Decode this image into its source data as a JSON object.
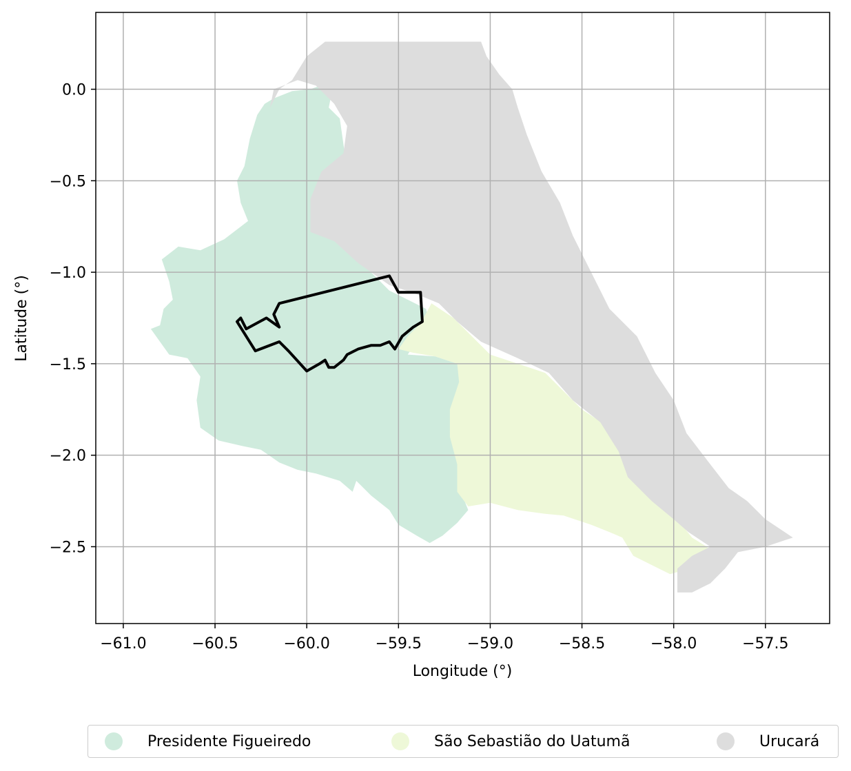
{
  "chart_data": {
    "type": "map",
    "xlabel": "Longitude (°)",
    "ylabel": "Latitude (°)",
    "xlim": [
      -61.15,
      -57.15
    ],
    "ylim": [
      -2.92,
      0.42
    ],
    "xticks": [
      -61.0,
      -60.5,
      -60.0,
      -59.5,
      -59.0,
      -58.5,
      -58.0,
      -57.5
    ],
    "xtick_labels": [
      "−61.0",
      "−60.5",
      "−60.0",
      "−59.5",
      "−59.0",
      "−58.5",
      "−58.0",
      "−57.5"
    ],
    "yticks": [
      0.0,
      -0.5,
      -1.0,
      -1.5,
      -2.0,
      -2.5
    ],
    "ytick_labels": [
      "0.0",
      "−0.5",
      "−1.0",
      "−1.5",
      "−2.0",
      "−2.5"
    ],
    "grid": true,
    "legend_placement": "bottom-center",
    "regions": [
      {
        "name": "Presidente Figueiredo",
        "color": "#cfebdd",
        "outline": [
          [
            -60.85,
            -1.31
          ],
          [
            -60.8,
            -1.29
          ],
          [
            -60.78,
            -1.2
          ],
          [
            -60.73,
            -1.15
          ],
          [
            -60.75,
            -1.05
          ],
          [
            -60.79,
            -0.93
          ],
          [
            -60.7,
            -0.86
          ],
          [
            -60.58,
            -0.88
          ],
          [
            -60.45,
            -0.82
          ],
          [
            -60.32,
            -0.72
          ],
          [
            -60.36,
            -0.62
          ],
          [
            -60.38,
            -0.5
          ],
          [
            -60.34,
            -0.42
          ],
          [
            -60.31,
            -0.27
          ],
          [
            -60.27,
            -0.14
          ],
          [
            -60.23,
            -0.08
          ],
          [
            -60.18,
            -0.05
          ],
          [
            -60.08,
            -0.01
          ],
          [
            -59.98,
            0.0
          ],
          [
            -59.9,
            0.03
          ],
          [
            -59.86,
            0.0
          ],
          [
            -59.88,
            -0.1
          ],
          [
            -59.82,
            -0.16
          ],
          [
            -59.8,
            -0.3
          ],
          [
            -59.78,
            -0.45
          ],
          [
            -59.88,
            -0.55
          ],
          [
            -59.88,
            -0.75
          ],
          [
            -59.78,
            -0.88
          ],
          [
            -59.65,
            -1.0
          ],
          [
            -59.55,
            -1.1
          ],
          [
            -59.45,
            -1.15
          ],
          [
            -59.35,
            -1.2
          ],
          [
            -59.33,
            -1.28
          ],
          [
            -59.4,
            -1.38
          ],
          [
            -59.45,
            -1.45
          ],
          [
            -59.3,
            -1.46
          ],
          [
            -59.18,
            -1.5
          ],
          [
            -59.15,
            -1.6
          ],
          [
            -59.2,
            -1.72
          ],
          [
            -59.22,
            -1.87
          ],
          [
            -59.18,
            -2.0
          ],
          [
            -59.18,
            -2.15
          ],
          [
            -59.12,
            -2.3
          ],
          [
            -59.18,
            -2.37
          ],
          [
            -59.26,
            -2.44
          ],
          [
            -59.33,
            -2.48
          ],
          [
            -59.4,
            -2.44
          ],
          [
            -59.5,
            -2.38
          ],
          [
            -59.55,
            -2.3
          ],
          [
            -59.65,
            -2.22
          ],
          [
            -59.73,
            -2.14
          ],
          [
            -59.75,
            -2.2
          ],
          [
            -59.82,
            -2.14
          ],
          [
            -59.95,
            -2.1
          ],
          [
            -60.05,
            -2.08
          ],
          [
            -60.15,
            -2.04
          ],
          [
            -60.25,
            -1.97
          ],
          [
            -60.35,
            -1.95
          ],
          [
            -60.48,
            -1.92
          ],
          [
            -60.58,
            -1.85
          ],
          [
            -60.6,
            -1.7
          ],
          [
            -60.58,
            -1.57
          ],
          [
            -60.65,
            -1.47
          ],
          [
            -60.75,
            -1.45
          ],
          [
            -60.8,
            -1.38
          ]
        ]
      },
      {
        "name": "São Sebastião do Uatumã",
        "color": "#eef8d8",
        "outline": [
          [
            -59.5,
            -1.42
          ],
          [
            -59.45,
            -1.35
          ],
          [
            -59.38,
            -1.28
          ],
          [
            -59.32,
            -1.17
          ],
          [
            -59.2,
            -1.25
          ],
          [
            -59.1,
            -1.35
          ],
          [
            -59.0,
            -1.45
          ],
          [
            -58.85,
            -1.5
          ],
          [
            -58.7,
            -1.55
          ],
          [
            -58.6,
            -1.65
          ],
          [
            -58.5,
            -1.75
          ],
          [
            -58.35,
            -1.85
          ],
          [
            -58.28,
            -2.0
          ],
          [
            -58.22,
            -2.15
          ],
          [
            -58.08,
            -2.25
          ],
          [
            -57.98,
            -2.35
          ],
          [
            -57.9,
            -2.45
          ],
          [
            -57.82,
            -2.5
          ],
          [
            -57.78,
            -2.55
          ],
          [
            -57.85,
            -2.6
          ],
          [
            -57.95,
            -2.63
          ],
          [
            -58.02,
            -2.65
          ],
          [
            -58.12,
            -2.6
          ],
          [
            -58.22,
            -2.55
          ],
          [
            -58.28,
            -2.45
          ],
          [
            -58.35,
            -2.42
          ],
          [
            -58.45,
            -2.38
          ],
          [
            -58.6,
            -2.33
          ],
          [
            -58.7,
            -2.32
          ],
          [
            -58.85,
            -2.3
          ],
          [
            -59.0,
            -2.26
          ],
          [
            -59.12,
            -2.28
          ],
          [
            -59.18,
            -2.2
          ],
          [
            -59.18,
            -2.05
          ],
          [
            -59.22,
            -1.9
          ],
          [
            -59.22,
            -1.75
          ],
          [
            -59.17,
            -1.6
          ],
          [
            -59.18,
            -1.5
          ],
          [
            -59.3,
            -1.46
          ],
          [
            -59.42,
            -1.44
          ]
        ]
      },
      {
        "name": "Urucará",
        "color": "#dddddd",
        "outline": [
          [
            -59.9,
            0.26
          ],
          [
            -59.05,
            0.26
          ],
          [
            -59.02,
            0.18
          ],
          [
            -58.95,
            0.08
          ],
          [
            -58.88,
            0.0
          ],
          [
            -58.85,
            -0.1
          ],
          [
            -58.8,
            -0.25
          ],
          [
            -58.72,
            -0.45
          ],
          [
            -58.62,
            -0.62
          ],
          [
            -58.55,
            -0.8
          ],
          [
            -58.45,
            -1.0
          ],
          [
            -58.35,
            -1.2
          ],
          [
            -58.2,
            -1.35
          ],
          [
            -58.1,
            -1.55
          ],
          [
            -58.0,
            -1.7
          ],
          [
            -57.93,
            -1.88
          ],
          [
            -57.8,
            -2.05
          ],
          [
            -57.7,
            -2.18
          ],
          [
            -57.6,
            -2.25
          ],
          [
            -57.5,
            -2.35
          ],
          [
            -57.35,
            -2.45
          ],
          [
            -57.5,
            -2.5
          ],
          [
            -57.65,
            -2.53
          ],
          [
            -57.72,
            -2.62
          ],
          [
            -57.8,
            -2.7
          ],
          [
            -57.9,
            -2.75
          ],
          [
            -57.98,
            -2.75
          ],
          [
            -57.98,
            -2.62
          ],
          [
            -57.9,
            -2.55
          ],
          [
            -57.8,
            -2.5
          ],
          [
            -57.92,
            -2.42
          ],
          [
            -58.0,
            -2.35
          ],
          [
            -58.12,
            -2.25
          ],
          [
            -58.25,
            -2.12
          ],
          [
            -58.3,
            -1.98
          ],
          [
            -58.4,
            -1.82
          ],
          [
            -58.55,
            -1.7
          ],
          [
            -58.68,
            -1.55
          ],
          [
            -58.85,
            -1.47
          ],
          [
            -59.05,
            -1.38
          ],
          [
            -59.18,
            -1.27
          ],
          [
            -59.28,
            -1.17
          ],
          [
            -59.4,
            -1.12
          ],
          [
            -59.55,
            -1.07
          ],
          [
            -59.72,
            -0.95
          ],
          [
            -59.85,
            -0.83
          ],
          [
            -59.98,
            -0.78
          ],
          [
            -59.98,
            -0.6
          ],
          [
            -59.92,
            -0.45
          ],
          [
            -59.8,
            -0.35
          ],
          [
            -59.78,
            -0.2
          ],
          [
            -59.85,
            -0.08
          ],
          [
            -59.95,
            0.02
          ],
          [
            -60.05,
            0.05
          ],
          [
            -60.18,
            0.0
          ],
          [
            -60.2,
            -0.1
          ],
          [
            -60.15,
            0.0
          ],
          [
            -60.08,
            0.05
          ],
          [
            -60.0,
            0.18
          ]
        ]
      }
    ],
    "boundary": {
      "color": "#000000",
      "outline": [
        [
          -60.38,
          -1.27
        ],
        [
          -60.28,
          -1.43
        ],
        [
          -60.15,
          -1.38
        ],
        [
          -60.1,
          -1.43
        ],
        [
          -60.0,
          -1.54
        ],
        [
          -59.93,
          -1.5
        ],
        [
          -59.9,
          -1.48
        ],
        [
          -59.88,
          -1.52
        ],
        [
          -59.85,
          -1.52
        ],
        [
          -59.8,
          -1.48
        ],
        [
          -59.78,
          -1.45
        ],
        [
          -59.72,
          -1.42
        ],
        [
          -59.65,
          -1.4
        ],
        [
          -59.6,
          -1.4
        ],
        [
          -59.55,
          -1.38
        ],
        [
          -59.52,
          -1.42
        ],
        [
          -59.48,
          -1.35
        ],
        [
          -59.42,
          -1.3
        ],
        [
          -59.37,
          -1.27
        ],
        [
          -59.38,
          -1.11
        ],
        [
          -59.5,
          -1.11
        ],
        [
          -59.55,
          -1.02
        ],
        [
          -60.15,
          -1.17
        ],
        [
          -60.18,
          -1.23
        ],
        [
          -60.15,
          -1.3
        ],
        [
          -60.22,
          -1.25
        ],
        [
          -60.33,
          -1.31
        ],
        [
          -60.36,
          -1.25
        ]
      ]
    }
  },
  "legend": {
    "items": [
      {
        "label": "Presidente Figueiredo",
        "color": "#cfebdd"
      },
      {
        "label": "São Sebastião do Uatumã",
        "color": "#eef8d8"
      },
      {
        "label": "Urucará",
        "color": "#dddddd"
      }
    ]
  }
}
